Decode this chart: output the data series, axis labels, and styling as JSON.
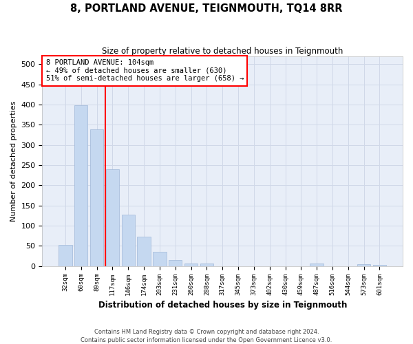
{
  "title": "8, PORTLAND AVENUE, TEIGNMOUTH, TQ14 8RR",
  "subtitle": "Size of property relative to detached houses in Teignmouth",
  "xlabel": "Distribution of detached houses by size in Teignmouth",
  "ylabel": "Number of detached properties",
  "categories": [
    "32sqm",
    "60sqm",
    "89sqm",
    "117sqm",
    "146sqm",
    "174sqm",
    "203sqm",
    "231sqm",
    "260sqm",
    "288sqm",
    "317sqm",
    "345sqm",
    "373sqm",
    "402sqm",
    "430sqm",
    "459sqm",
    "487sqm",
    "516sqm",
    "544sqm",
    "573sqm",
    "601sqm"
  ],
  "values": [
    52,
    398,
    338,
    240,
    128,
    72,
    35,
    15,
    7,
    6,
    0,
    0,
    0,
    0,
    0,
    0,
    6,
    0,
    0,
    4,
    3
  ],
  "bar_color": "#c5d8f0",
  "bar_edge_color": "#a0b8d8",
  "grid_color": "#d0d8e8",
  "background_color": "#e8eef8",
  "annotation_text": "8 PORTLAND AVENUE: 104sqm\n← 49% of detached houses are smaller (630)\n51% of semi-detached houses are larger (658) →",
  "annotation_box_color": "white",
  "annotation_border_color": "red",
  "ylim": [
    0,
    520
  ],
  "yticks": [
    0,
    50,
    100,
    150,
    200,
    250,
    300,
    350,
    400,
    450,
    500
  ],
  "footer_line1": "Contains HM Land Registry data © Crown copyright and database right 2024.",
  "footer_line2": "Contains public sector information licensed under the Open Government Licence v3.0."
}
